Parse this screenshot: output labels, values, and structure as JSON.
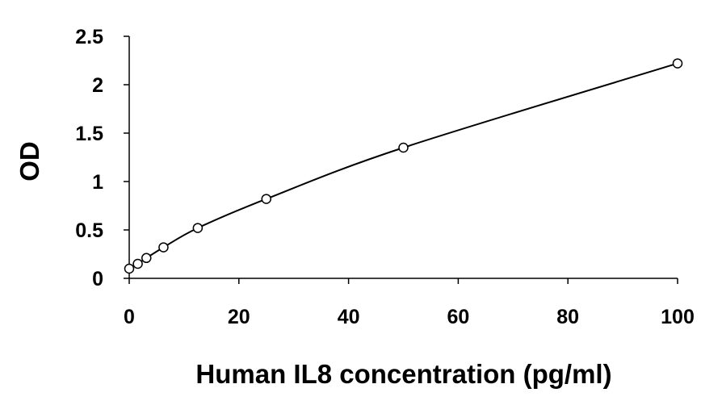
{
  "chart_data": {
    "type": "scatter",
    "title": "",
    "xlabel": "Human IL8 concentration (pg/ml)",
    "ylabel": "OD",
    "xlim": [
      0,
      100
    ],
    "ylim": [
      0,
      2.5
    ],
    "x_ticks": [
      0,
      20,
      40,
      60,
      80,
      100
    ],
    "y_ticks": [
      0,
      0.5,
      1,
      1.5,
      2,
      2.5
    ],
    "x_tick_labels": [
      "0",
      "20",
      "40",
      "60",
      "80",
      "100"
    ],
    "y_tick_labels": [
      "0",
      "0.5",
      "1",
      "1.5",
      "2",
      "2.5"
    ],
    "grid": false,
    "legend": "none",
    "series": [
      {
        "points": [
          {
            "x": 0,
            "y": 0.1
          },
          {
            "x": 1.56,
            "y": 0.15
          },
          {
            "x": 3.13,
            "y": 0.21
          },
          {
            "x": 6.25,
            "y": 0.32
          },
          {
            "x": 12.5,
            "y": 0.52
          },
          {
            "x": 25,
            "y": 0.82
          },
          {
            "x": 50,
            "y": 1.35
          },
          {
            "x": 100,
            "y": 2.22
          }
        ],
        "marker": "open-circle",
        "trendline": "smooth",
        "color": "#000000"
      }
    ]
  }
}
